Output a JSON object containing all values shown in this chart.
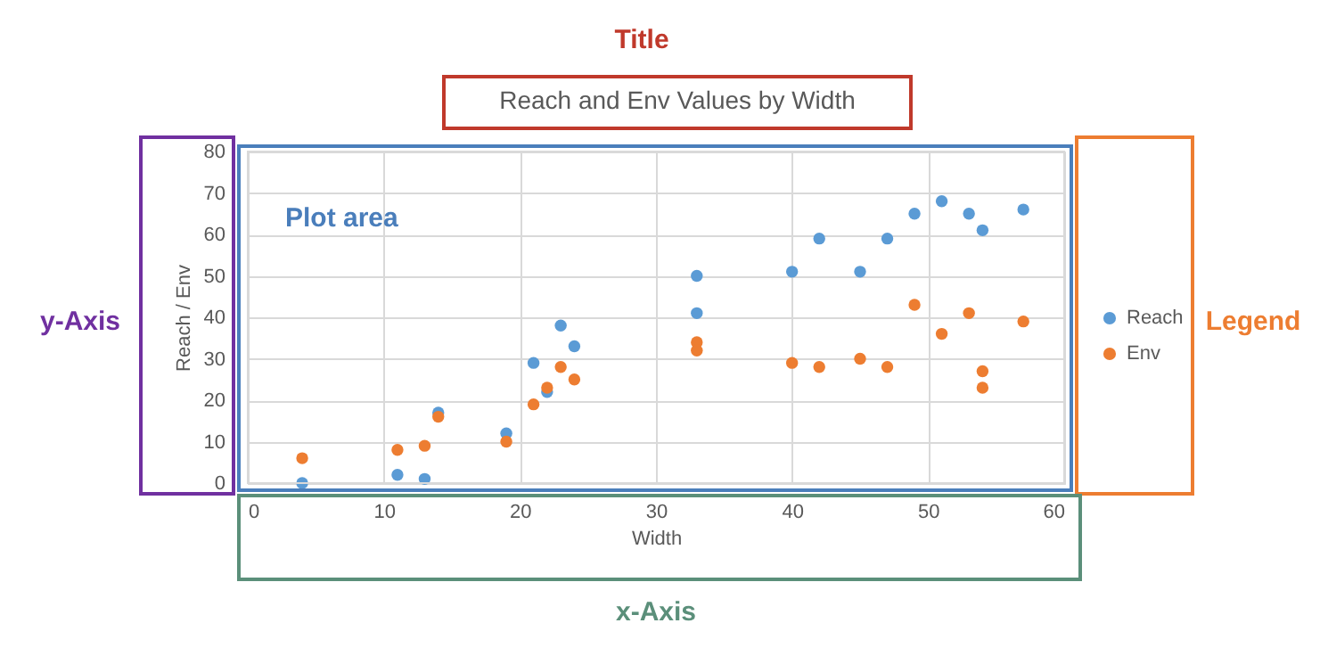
{
  "chart_data": {
    "type": "scatter",
    "title": "Reach and Env Values by Width",
    "xlabel": "Width",
    "ylabel": "Reach / Env",
    "xlim": [
      0,
      60
    ],
    "xticks": [
      0,
      10,
      20,
      30,
      40,
      50,
      60
    ],
    "ylim": [
      0,
      80
    ],
    "yticks": [
      0,
      10,
      20,
      30,
      40,
      50,
      60,
      70,
      80
    ],
    "grid": true,
    "legend": "right",
    "marker": "circle",
    "series": [
      {
        "name": "Reach",
        "color": "#5b9bd5",
        "x": [
          4,
          11,
          13,
          14,
          19,
          21,
          22,
          23,
          24,
          33,
          33,
          40,
          42,
          45,
          47,
          49,
          51,
          53,
          54,
          57
        ],
        "values": [
          0,
          2,
          1,
          17,
          12,
          29,
          22,
          38,
          33,
          50,
          41,
          51,
          59,
          51,
          59,
          65,
          68,
          65,
          61,
          66
        ]
      },
      {
        "name": "Env",
        "color": "#ed7d31",
        "x": [
          4,
          11,
          13,
          14,
          19,
          21,
          22,
          23,
          24,
          33,
          33,
          40,
          42,
          45,
          47,
          49,
          51,
          53,
          54,
          54,
          57
        ],
        "values": [
          6,
          8,
          9,
          16,
          10,
          19,
          23,
          28,
          25,
          34,
          32,
          29,
          28,
          30,
          28,
          43,
          36,
          41,
          27,
          23,
          39
        ]
      }
    ],
    "annotations": [
      "Title",
      "Plot area",
      "y-Axis",
      "Legend",
      "x-Axis"
    ]
  }
}
